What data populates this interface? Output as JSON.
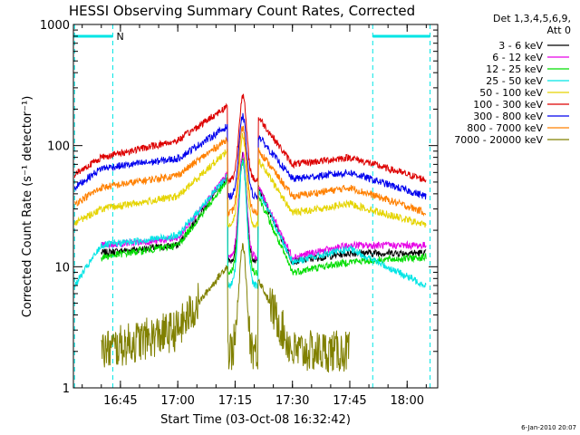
{
  "chart_data": {
    "type": "line",
    "title": "HESSI Observing Summary Count Rates, Corrected",
    "xlabel": "Start Time (03-Oct-08 16:32:42)",
    "ylabel": "Corrected Count Rate (s⁻¹ detector⁻¹)",
    "y_scale": "log",
    "ylim": [
      1,
      1000
    ],
    "xlim": [
      "16:32:42",
      "18:08:00"
    ],
    "x_ticks": [
      "16:45",
      "17:00",
      "17:15",
      "17:30",
      "17:45",
      "18:00"
    ],
    "y_ticks": [
      "1",
      "10",
      "100",
      "1000"
    ],
    "legend_header": [
      "Det 1,3,4,5,6,9,",
      "Att 0"
    ],
    "legend_position": "right",
    "timestamp": "6-Jan-2010 20:07",
    "annotations": [
      {
        "label": "N",
        "time": "16:43:00"
      }
    ],
    "night_intervals": [
      {
        "start": "16:32:42",
        "end": "16:43:00",
        "level": 1.0
      },
      {
        "start": "17:51:00",
        "end": "18:06:00",
        "level": 1.0
      }
    ],
    "x_events": [
      "16:33:00",
      "16:43:00",
      "17:51:00",
      "18:06:00"
    ],
    "flare_peak_time": "17:17",
    "day_interval": [
      "16:38:00",
      "17:54:00"
    ],
    "series": [
      {
        "name": "3 - 6 keV",
        "color": "#000000",
        "values": {
          "16:40": 13,
          "17:00": 15,
          "17:17": 85,
          "17:30": 11,
          "17:45": 13,
          "18:05": 13
        }
      },
      {
        "name": "6 - 12 keV",
        "color": "#e600e6",
        "values": {
          "16:40": 15,
          "17:00": 17,
          "17:17": 85,
          "17:30": 12,
          "17:45": 15,
          "18:05": 15
        }
      },
      {
        "name": "12 - 25 keV",
        "color": "#00dd00",
        "values": {
          "16:40": 12,
          "17:00": 15,
          "17:17": 75,
          "17:30": 9,
          "17:45": 11,
          "18:05": 12
        }
      },
      {
        "name": "25 - 50 keV",
        "color": "#00e5e5",
        "values": {
          "16:33": 7,
          "16:40": 15,
          "17:00": 18,
          "17:17": 80,
          "17:30": 11,
          "17:45": 14,
          "18:05": 7
        }
      },
      {
        "name": "50 - 100 keV",
        "color": "#e5d400",
        "values": {
          "16:33": 23,
          "16:40": 30,
          "17:00": 38,
          "17:17": 120,
          "17:30": 28,
          "17:45": 33,
          "18:05": 22
        }
      },
      {
        "name": "100 - 300 keV",
        "color": "#dd0000",
        "values": {
          "16:33": 58,
          "16:40": 80,
          "17:00": 110,
          "17:17": 260,
          "17:30": 70,
          "17:45": 80,
          "18:05": 52
        }
      },
      {
        "name": "300 - 800 keV",
        "color": "#0000ee",
        "values": {
          "16:33": 45,
          "16:40": 65,
          "17:00": 78,
          "17:17": 175,
          "17:30": 53,
          "17:45": 60,
          "18:05": 38
        }
      },
      {
        "name": "800 - 7000 keV",
        "color": "#ff8000",
        "values": {
          "16:33": 33,
          "16:40": 45,
          "17:00": 57,
          "17:17": 140,
          "17:30": 38,
          "17:45": 45,
          "18:05": 28
        }
      },
      {
        "name": "7000 - 20000 keV",
        "color": "#808000",
        "values": {
          "16:40": 2,
          "17:00": 3,
          "17:17": 15,
          "17:30": 2,
          "17:45": 2
        }
      }
    ]
  }
}
